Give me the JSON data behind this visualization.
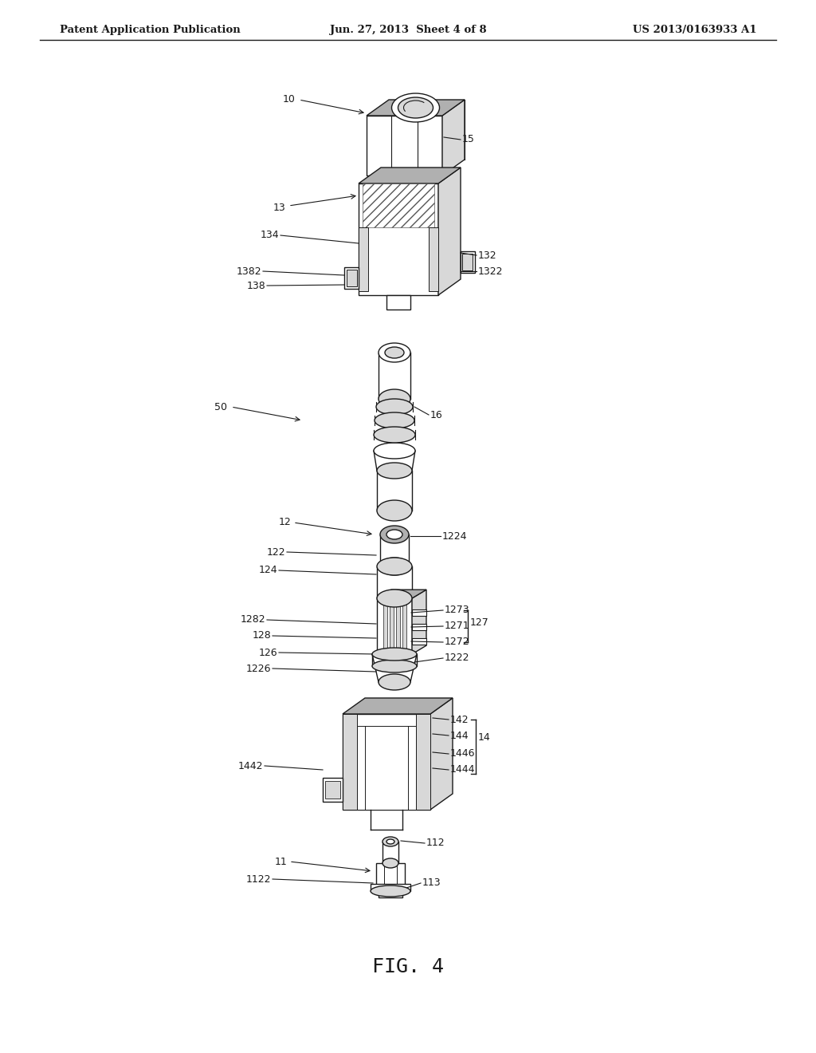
{
  "bg_color": "#ffffff",
  "line_color": "#1a1a1a",
  "gray_light": "#d8d8d8",
  "gray_mid": "#b0b0b0",
  "gray_dark": "#888888",
  "hatch_color": "#555555",
  "header_left": "Patent Application Publication",
  "header_center": "Jun. 27, 2013  Sheet 4 of 8",
  "header_right": "US 2013/0163933 A1",
  "figure_label": "FIG. 4"
}
